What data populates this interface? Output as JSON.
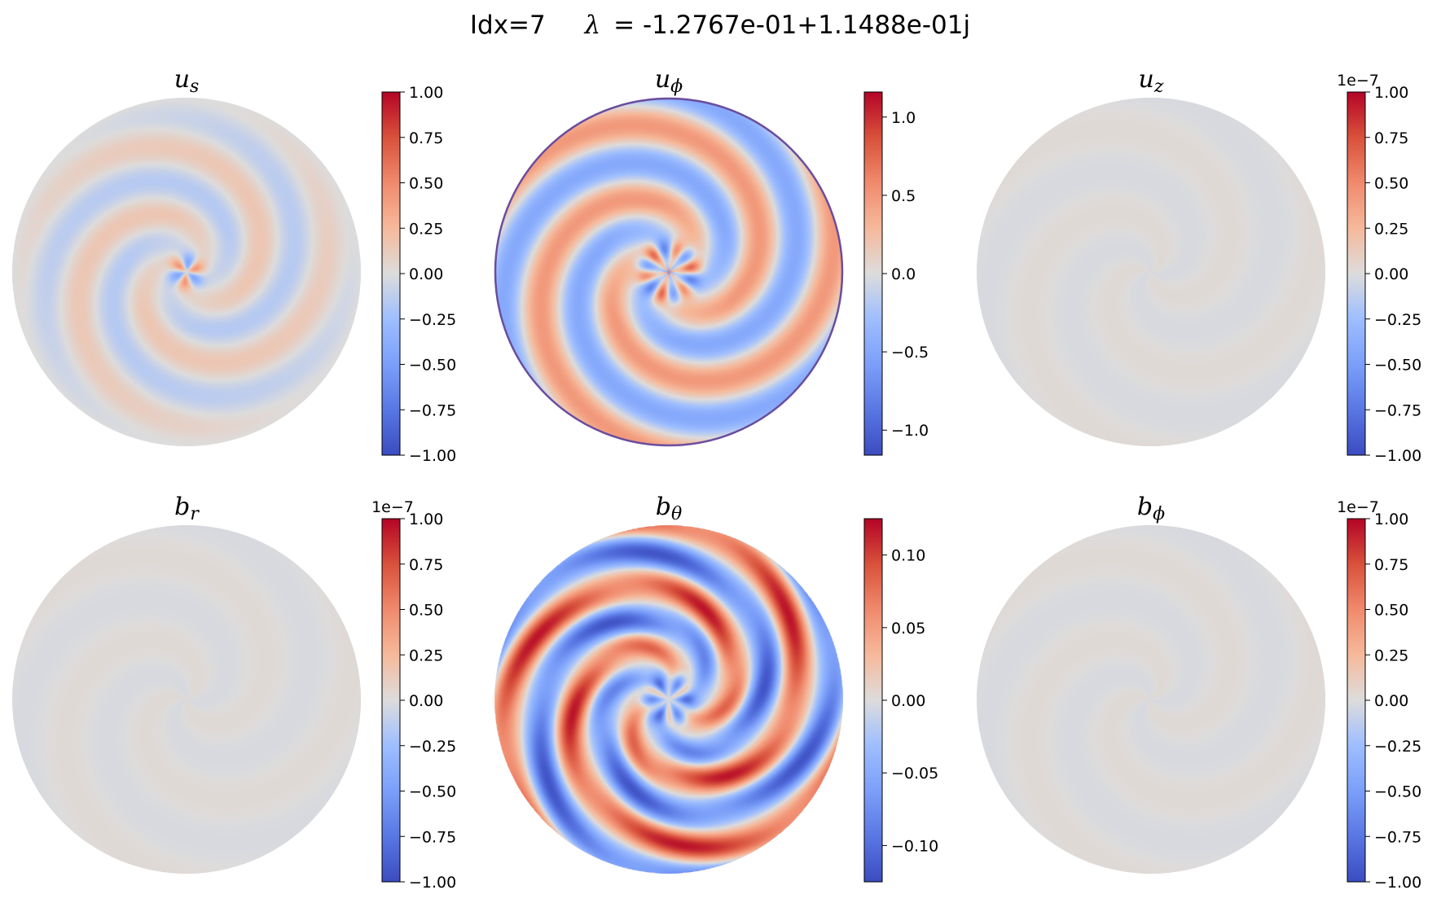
{
  "figure": {
    "title_idx": "Idx=7",
    "title_lambda_symbol": "λ",
    "title_lambda_value": "= -1.2767e-01+1.1488e-01j"
  },
  "chart_data": [
    {
      "type": "heatmap",
      "title": "u_s",
      "title_main": "u",
      "title_sub": "s",
      "colormap": "coolwarm",
      "vlim": [
        -1.0,
        1.0
      ],
      "offset_text": "",
      "ticks": [
        1.0,
        0.75,
        0.5,
        0.25,
        0.0,
        -0.25,
        -0.5,
        -0.75,
        -1.0
      ],
      "tick_labels": [
        "1.00",
        "0.75",
        "0.50",
        "0.25",
        "0.00",
        "−0.25",
        "−0.50",
        "−0.75",
        "−1.00"
      ],
      "pattern": "center-lobes-weak-spiral",
      "azimuthal_wavenumber": 3
    },
    {
      "type": "heatmap",
      "title": "u_phi",
      "title_main": "u",
      "title_sub": "ϕ",
      "colormap": "coolwarm",
      "vlim": [
        -1.16,
        1.16
      ],
      "offset_text": "",
      "ticks": [
        1.0,
        0.5,
        0.0,
        -0.5,
        -1.0
      ],
      "tick_labels": [
        "1.0",
        "0.5",
        "0.0",
        "−0.5",
        "−1.0"
      ],
      "pattern": "spiral-with-center-rosette",
      "azimuthal_wavenumber": 3
    },
    {
      "type": "heatmap",
      "title": "u_z",
      "title_main": "u",
      "title_sub": "z",
      "colormap": "coolwarm",
      "vlim": [
        -1.0,
        1.0
      ],
      "offset_text": "1e−7",
      "ticks": [
        1.0,
        0.75,
        0.5,
        0.25,
        0.0,
        -0.25,
        -0.5,
        -0.75,
        -1.0
      ],
      "tick_labels": [
        "1.00",
        "0.75",
        "0.50",
        "0.25",
        "0.00",
        "−0.25",
        "−0.50",
        "−0.75",
        "−1.00"
      ],
      "pattern": "uniform-near-zero",
      "azimuthal_wavenumber": 3
    },
    {
      "type": "heatmap",
      "title": "b_r",
      "title_main": "b",
      "title_sub": "r",
      "colormap": "coolwarm",
      "vlim": [
        -1.0,
        1.0
      ],
      "offset_text": "1e−7",
      "ticks": [
        1.0,
        0.75,
        0.5,
        0.25,
        0.0,
        -0.25,
        -0.5,
        -0.75,
        -1.0
      ],
      "tick_labels": [
        "1.00",
        "0.75",
        "0.50",
        "0.25",
        "0.00",
        "−0.25",
        "−0.50",
        "−0.75",
        "−1.00"
      ],
      "pattern": "uniform-near-zero",
      "azimuthal_wavenumber": 3
    },
    {
      "type": "heatmap",
      "title": "b_theta",
      "title_main": "b",
      "title_sub": "θ",
      "colormap": "coolwarm",
      "vlim": [
        -0.125,
        0.125
      ],
      "offset_text": "",
      "ticks": [
        0.1,
        0.05,
        0.0,
        -0.05,
        -0.1
      ],
      "tick_labels": [
        "0.10",
        "0.05",
        "0.00",
        "−0.05",
        "−0.10"
      ],
      "pattern": "strong-spiral-with-center-petals",
      "azimuthal_wavenumber": 3
    },
    {
      "type": "heatmap",
      "title": "b_phi",
      "title_main": "b",
      "title_sub": "ϕ",
      "colormap": "coolwarm",
      "vlim": [
        -1.0,
        1.0
      ],
      "offset_text": "1e−7",
      "ticks": [
        1.0,
        0.75,
        0.5,
        0.25,
        0.0,
        -0.25,
        -0.5,
        -0.75,
        -1.0
      ],
      "tick_labels": [
        "1.00",
        "0.75",
        "0.50",
        "0.25",
        "0.00",
        "−0.25",
        "−0.50",
        "−0.75",
        "−1.00"
      ],
      "pattern": "uniform-near-zero",
      "azimuthal_wavenumber": 3
    }
  ]
}
